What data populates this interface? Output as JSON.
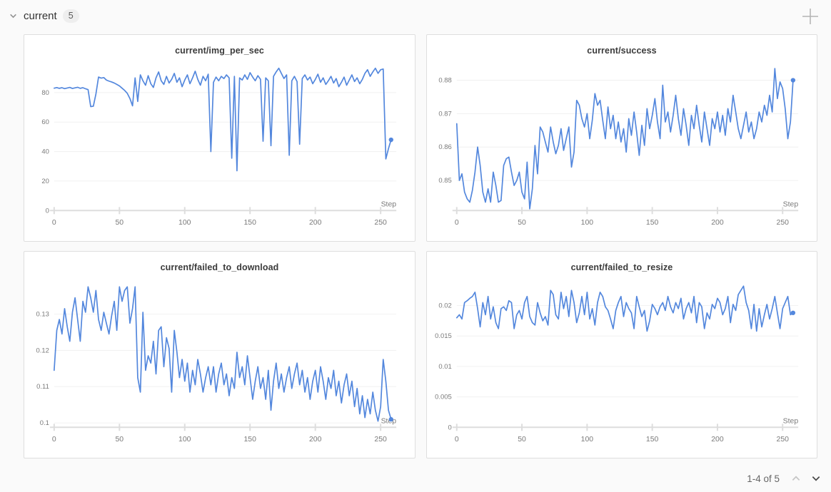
{
  "header": {
    "label": "current",
    "count": "5"
  },
  "icons": {
    "section_collapse": "chevron-down-icon",
    "add_panel": "plus-icon",
    "page_prev": "chevron-up-icon",
    "page_next": "chevron-down-icon"
  },
  "colors": {
    "line": "#5387dd",
    "grid": "#f0f0f0",
    "axis": "#dddddd",
    "tick_text": "#7a7a7a",
    "title_text": "#3b3b3b",
    "panel_border": "#dedede",
    "panel_bg": "#ffffff",
    "page_bg": "#fafafa",
    "chevron_gray": "#8f8f8f",
    "chevron_disabled": "#c6c6c6",
    "chevron_active": "#4a4a4a",
    "plus_gray": "#b3b3b3"
  },
  "pagination": {
    "label": "1-4 of 5"
  },
  "chart_data": [
    {
      "type": "line",
      "title": "current/img_per_sec",
      "xlabel": "Step",
      "x_ticks": [
        0,
        50,
        100,
        150,
        200,
        250
      ],
      "xlim": [
        0,
        262
      ],
      "ylim": [
        0,
        97
      ],
      "y_ticks": [
        {
          "v": 0,
          "label": "0"
        },
        {
          "v": 20,
          "label": "20"
        },
        {
          "v": 40,
          "label": "40"
        },
        {
          "v": 60,
          "label": "60"
        },
        {
          "v": 80,
          "label": "80"
        }
      ],
      "x_start": 0,
      "x_interval": 2,
      "values": [
        83.0,
        83.4,
        82.9,
        83.3,
        82.7,
        83.1,
        83.5,
        82.8,
        83.2,
        83.6,
        82.9,
        83.3,
        82.6,
        82.0,
        70.5,
        70.8,
        79.0,
        90.5,
        89.8,
        90.2,
        88.5,
        87.8,
        87.2,
        86.5,
        85.5,
        84.5,
        83.0,
        81.5,
        79.5,
        76.0,
        71.0,
        90.0,
        74.0,
        92.0,
        88.0,
        85.0,
        91.5,
        86.0,
        83.5,
        90.0,
        94.0,
        88.0,
        85.5,
        91.0,
        86.5,
        89.0,
        93.0,
        87.0,
        90.0,
        84.0,
        88.5,
        92.0,
        86.0,
        90.0,
        94.5,
        89.0,
        85.0,
        91.0,
        88.0,
        92.5,
        40.0,
        87.0,
        90.5,
        88.0,
        91.0,
        89.5,
        92.0,
        90.0,
        35.5,
        91.0,
        27.0,
        90.0,
        88.5,
        92.0,
        89.0,
        93.5,
        90.5,
        88.0,
        91.5,
        89.0,
        47.0,
        90.0,
        88.0,
        44.0,
        91.0,
        94.0,
        96.5,
        93.0,
        89.5,
        92.0,
        37.5,
        88.0,
        91.0,
        87.5,
        45.0,
        89.5,
        92.0,
        88.5,
        90.5,
        86.0,
        89.0,
        92.5,
        87.0,
        90.0,
        85.5,
        88.0,
        91.0,
        86.5,
        89.5,
        84.0,
        87.0,
        90.5,
        85.0,
        88.5,
        92.0,
        87.5,
        90.0,
        86.0,
        89.0,
        93.0,
        95.5,
        91.0,
        94.0,
        96.5,
        93.0,
        95.5,
        96.0,
        35.0,
        42.0,
        48.0
      ]
    },
    {
      "type": "line",
      "title": "current/success",
      "xlabel": "Step",
      "x_ticks": [
        0,
        50,
        100,
        150,
        200,
        250
      ],
      "xlim": [
        0,
        262
      ],
      "ylim": [
        0.841,
        0.8838
      ],
      "y_ticks": [
        {
          "v": 0.85,
          "label": "0.85"
        },
        {
          "v": 0.86,
          "label": "0.86"
        },
        {
          "v": 0.87,
          "label": "0.87"
        },
        {
          "v": 0.88,
          "label": "0.88"
        }
      ],
      "x_start": 0,
      "x_interval": 2,
      "values": [
        0.867,
        0.85,
        0.852,
        0.8465,
        0.8445,
        0.8435,
        0.847,
        0.8525,
        0.86,
        0.8545,
        0.8465,
        0.8435,
        0.8475,
        0.8435,
        0.8525,
        0.8485,
        0.8435,
        0.844,
        0.8545,
        0.8565,
        0.857,
        0.8525,
        0.8485,
        0.85,
        0.8525,
        0.8465,
        0.8445,
        0.8555,
        0.8415,
        0.8475,
        0.8605,
        0.852,
        0.866,
        0.8645,
        0.8615,
        0.8585,
        0.866,
        0.8615,
        0.858,
        0.8605,
        0.8655,
        0.859,
        0.8625,
        0.866,
        0.854,
        0.8585,
        0.874,
        0.8725,
        0.8685,
        0.866,
        0.87,
        0.8625,
        0.868,
        0.876,
        0.8725,
        0.874,
        0.868,
        0.8625,
        0.872,
        0.8655,
        0.8695,
        0.8625,
        0.8675,
        0.8615,
        0.8655,
        0.8585,
        0.8685,
        0.8635,
        0.8705,
        0.8645,
        0.8575,
        0.8665,
        0.8605,
        0.8715,
        0.8655,
        0.8695,
        0.8745,
        0.8675,
        0.8625,
        0.8785,
        0.8675,
        0.8705,
        0.8645,
        0.8695,
        0.8755,
        0.8685,
        0.8635,
        0.8715,
        0.8665,
        0.8605,
        0.8695,
        0.8655,
        0.8725,
        0.8665,
        0.8615,
        0.8705,
        0.8655,
        0.8605,
        0.8685,
        0.8655,
        0.8705,
        0.8645,
        0.8695,
        0.8635,
        0.8715,
        0.8675,
        0.8755,
        0.8705,
        0.8655,
        0.8625,
        0.8665,
        0.8705,
        0.8645,
        0.8675,
        0.8625,
        0.8655,
        0.8705,
        0.8675,
        0.8725,
        0.8695,
        0.8755,
        0.8705,
        0.8835,
        0.8745,
        0.8795,
        0.8775,
        0.8715,
        0.8625,
        0.8675,
        0.88
      ]
    },
    {
      "type": "line",
      "title": "current/failed_to_download",
      "xlabel": "Step",
      "x_ticks": [
        0,
        50,
        100,
        150,
        200,
        250
      ],
      "xlim": [
        0,
        262
      ],
      "ylim": [
        0.0988,
        0.1382
      ],
      "y_ticks": [
        {
          "v": 0.1,
          "label": "0.1"
        },
        {
          "v": 0.11,
          "label": "0.11"
        },
        {
          "v": 0.12,
          "label": "0.12"
        },
        {
          "v": 0.13,
          "label": "0.13"
        }
      ],
      "x_start": 0,
      "x_interval": 2,
      "values": [
        0.1145,
        0.1255,
        0.1285,
        0.1245,
        0.1315,
        0.1265,
        0.1225,
        0.1305,
        0.1345,
        0.1285,
        0.1225,
        0.1335,
        0.1305,
        0.1375,
        0.1345,
        0.1305,
        0.1365,
        0.1285,
        0.1255,
        0.1305,
        0.1275,
        0.1245,
        0.1295,
        0.1335,
        0.1255,
        0.1375,
        0.1335,
        0.1365,
        0.1375,
        0.1275,
        0.1315,
        0.1375,
        0.1125,
        0.1085,
        0.1305,
        0.1145,
        0.1185,
        0.1165,
        0.1225,
        0.1135,
        0.1255,
        0.1265,
        0.1155,
        0.1235,
        0.1205,
        0.1085,
        0.1255,
        0.1195,
        0.1125,
        0.1175,
        0.1115,
        0.1165,
        0.1085,
        0.1145,
        0.1105,
        0.1175,
        0.1135,
        0.1085,
        0.1125,
        0.1155,
        0.1105,
        0.1155,
        0.1085,
        0.1135,
        0.1165,
        0.1105,
        0.1135,
        0.1075,
        0.1125,
        0.1095,
        0.1195,
        0.1125,
        0.1155,
        0.1105,
        0.1185,
        0.1125,
        0.1065,
        0.1115,
        0.1155,
        0.1095,
        0.1125,
        0.1065,
        0.1145,
        0.1035,
        0.1115,
        0.1165,
        0.1095,
        0.1135,
        0.1085,
        0.1125,
        0.1155,
        0.1095,
        0.1135,
        0.1165,
        0.1105,
        0.1145,
        0.1085,
        0.1125,
        0.1065,
        0.1115,
        0.1145,
        0.1085,
        0.1155,
        0.1115,
        0.1065,
        0.1125,
        0.1095,
        0.1145,
        0.1075,
        0.1115,
        0.1055,
        0.1105,
        0.1135,
        0.1075,
        0.1115,
        0.1045,
        0.1095,
        0.1025,
        0.1075,
        0.1015,
        0.1065,
        0.1025,
        0.1085,
        0.1035,
        0.1005,
        0.1045,
        0.1175,
        0.1115,
        0.1035,
        0.101
      ]
    },
    {
      "type": "line",
      "title": "current/failed_to_resize",
      "xlabel": "Step",
      "x_ticks": [
        0,
        50,
        100,
        150,
        200,
        250
      ],
      "xlim": [
        0,
        262
      ],
      "ylim": [
        0,
        0.0235
      ],
      "y_ticks": [
        {
          "v": 0,
          "label": "0"
        },
        {
          "v": 0.005,
          "label": "0.005"
        },
        {
          "v": 0.01,
          "label": "0.01"
        },
        {
          "v": 0.015,
          "label": "0.015"
        },
        {
          "v": 0.02,
          "label": "0.02"
        }
      ],
      "x_start": 0,
      "x_interval": 2,
      "values": [
        0.018,
        0.0185,
        0.0178,
        0.0205,
        0.0208,
        0.0212,
        0.0215,
        0.0222,
        0.0195,
        0.0165,
        0.0205,
        0.0185,
        0.0215,
        0.0178,
        0.0198,
        0.0172,
        0.0162,
        0.0195,
        0.0198,
        0.0192,
        0.0208,
        0.0205,
        0.0162,
        0.0185,
        0.0192,
        0.0178,
        0.0205,
        0.0215,
        0.0182,
        0.0172,
        0.0168,
        0.0205,
        0.0188,
        0.0175,
        0.0182,
        0.0168,
        0.0225,
        0.0218,
        0.0185,
        0.0178,
        0.0222,
        0.0195,
        0.0215,
        0.0182,
        0.0225,
        0.0205,
        0.0172,
        0.0188,
        0.0215,
        0.0185,
        0.0222,
        0.0178,
        0.0195,
        0.0168,
        0.0205,
        0.0222,
        0.0215,
        0.0198,
        0.0192,
        0.0178,
        0.0162,
        0.0192,
        0.0205,
        0.0215,
        0.0182,
        0.0205,
        0.0195,
        0.0188,
        0.0162,
        0.0215,
        0.0198,
        0.0182,
        0.0192,
        0.0158,
        0.0175,
        0.0202,
        0.0195,
        0.0185,
        0.0198,
        0.0205,
        0.0192,
        0.0215,
        0.0198,
        0.0188,
        0.0205,
        0.0195,
        0.0212,
        0.0178,
        0.0195,
        0.0205,
        0.0188,
        0.0215,
        0.0172,
        0.0205,
        0.0198,
        0.0162,
        0.0188,
        0.0178,
        0.0202,
        0.0195,
        0.0212,
        0.0205,
        0.0185,
        0.0195,
        0.0215,
        0.0172,
        0.0202,
        0.0192,
        0.0218,
        0.0225,
        0.0232,
        0.0205,
        0.0192,
        0.0162,
        0.0202,
        0.0158,
        0.0195,
        0.0165,
        0.0185,
        0.0202,
        0.0178,
        0.0195,
        0.0215,
        0.0188,
        0.0162,
        0.0195,
        0.0205,
        0.0215,
        0.0185,
        0.0188
      ]
    }
  ]
}
